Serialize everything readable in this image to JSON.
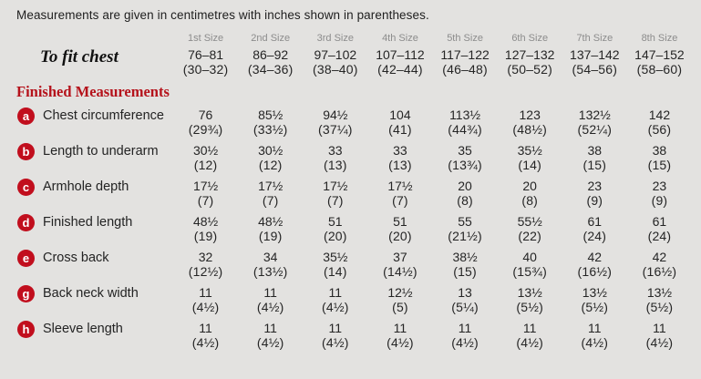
{
  "intro": "Measurements are given in centimetres with inches shown in parentheses.",
  "colors": {
    "background": "#e3e2e0",
    "accent_red": "#c10e1d",
    "header_gray": "#8c8c8c",
    "text": "#262626"
  },
  "table": {
    "size_headers": [
      "1st Size",
      "2nd Size",
      "3rd Size",
      "4th Size",
      "5th Size",
      "6th Size",
      "7th Size",
      "8th Size"
    ],
    "to_fit_chest": {
      "label": "To fit chest",
      "cm": [
        "76–81",
        "86–92",
        "97–102",
        "107–112",
        "117–122",
        "127–132",
        "137–142",
        "147–152"
      ],
      "in": [
        "(30–32)",
        "(34–36)",
        "(38–40)",
        "(42–44)",
        "(46–48)",
        "(50–52)",
        "(54–56)",
        "(58–60)"
      ]
    },
    "section_heading": "Finished Measurements",
    "rows": [
      {
        "key": "a",
        "label": "Chest circumference",
        "cm": [
          "76",
          "85½",
          "94½",
          "104",
          "113½",
          "123",
          "132½",
          "142"
        ],
        "in": [
          "(29¾)",
          "(33½)",
          "(37¼)",
          "(41)",
          "(44¾)",
          "(48½)",
          "(52¼)",
          "(56)"
        ]
      },
      {
        "key": "b",
        "label": "Length to underarm",
        "cm": [
          "30½",
          "30½",
          "33",
          "33",
          "35",
          "35½",
          "38",
          "38"
        ],
        "in": [
          "(12)",
          "(12)",
          "(13)",
          "(13)",
          "(13¾)",
          "(14)",
          "(15)",
          "(15)"
        ]
      },
      {
        "key": "c",
        "label": "Armhole depth",
        "cm": [
          "17½",
          "17½",
          "17½",
          "17½",
          "20",
          "20",
          "23",
          "23"
        ],
        "in": [
          "(7)",
          "(7)",
          "(7)",
          "(7)",
          "(8)",
          "(8)",
          "(9)",
          "(9)"
        ]
      },
      {
        "key": "d",
        "label": "Finished length",
        "cm": [
          "48½",
          "48½",
          "51",
          "51",
          "55",
          "55½",
          "61",
          "61"
        ],
        "in": [
          "(19)",
          "(19)",
          "(20)",
          "(20)",
          "(21½)",
          "(22)",
          "(24)",
          "(24)"
        ]
      },
      {
        "key": "e",
        "label": "Cross back",
        "cm": [
          "32",
          "34",
          "35½",
          "37",
          "38½",
          "40",
          "42",
          "42"
        ],
        "in": [
          "(12½)",
          "(13½)",
          "(14)",
          "(14½)",
          "(15)",
          "(15¾)",
          "(16½)",
          "(16½)"
        ]
      },
      {
        "key": "g",
        "label": "Back neck width",
        "cm": [
          "11",
          "11",
          "11",
          "12½",
          "13",
          "13½",
          "13½",
          "13½"
        ],
        "in": [
          "(4½)",
          "(4½)",
          "(4½)",
          "(5)",
          "(5¼)",
          "(5½)",
          "(5½)",
          "(5½)"
        ]
      },
      {
        "key": "h",
        "label": "Sleeve length",
        "cm": [
          "11",
          "11",
          "11",
          "11",
          "11",
          "11",
          "11",
          "11"
        ],
        "in": [
          "(4½)",
          "(4½)",
          "(4½)",
          "(4½)",
          "(4½)",
          "(4½)",
          "(4½)",
          "(4½)"
        ]
      }
    ]
  }
}
